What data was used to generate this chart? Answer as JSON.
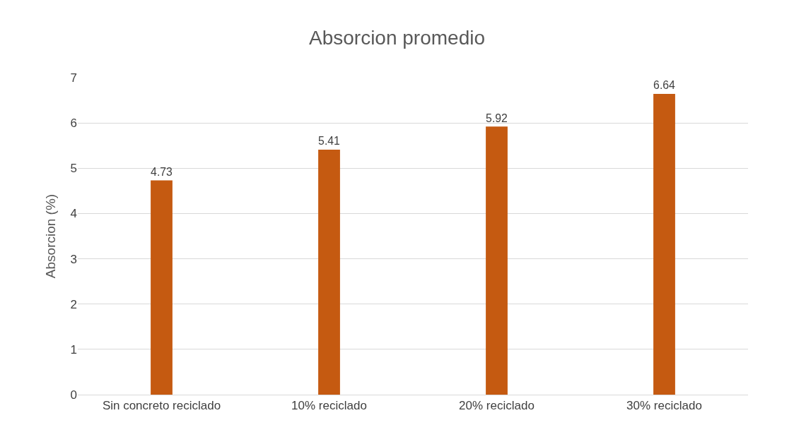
{
  "chart_data": {
    "type": "bar",
    "title": "Absorcion promedio",
    "ylabel": "Absorcion (%)",
    "categories": [
      "Sin concreto reciclado",
      "10% reciclado",
      "20% reciclado",
      "30% reciclado"
    ],
    "values": [
      4.73,
      5.41,
      5.92,
      6.64
    ],
    "color": "#c55a11",
    "ylim": [
      0,
      7
    ],
    "yticks": [
      0,
      1,
      2,
      3,
      4,
      5,
      6,
      7
    ],
    "grid": "y",
    "data_labels": true,
    "legend": false
  }
}
